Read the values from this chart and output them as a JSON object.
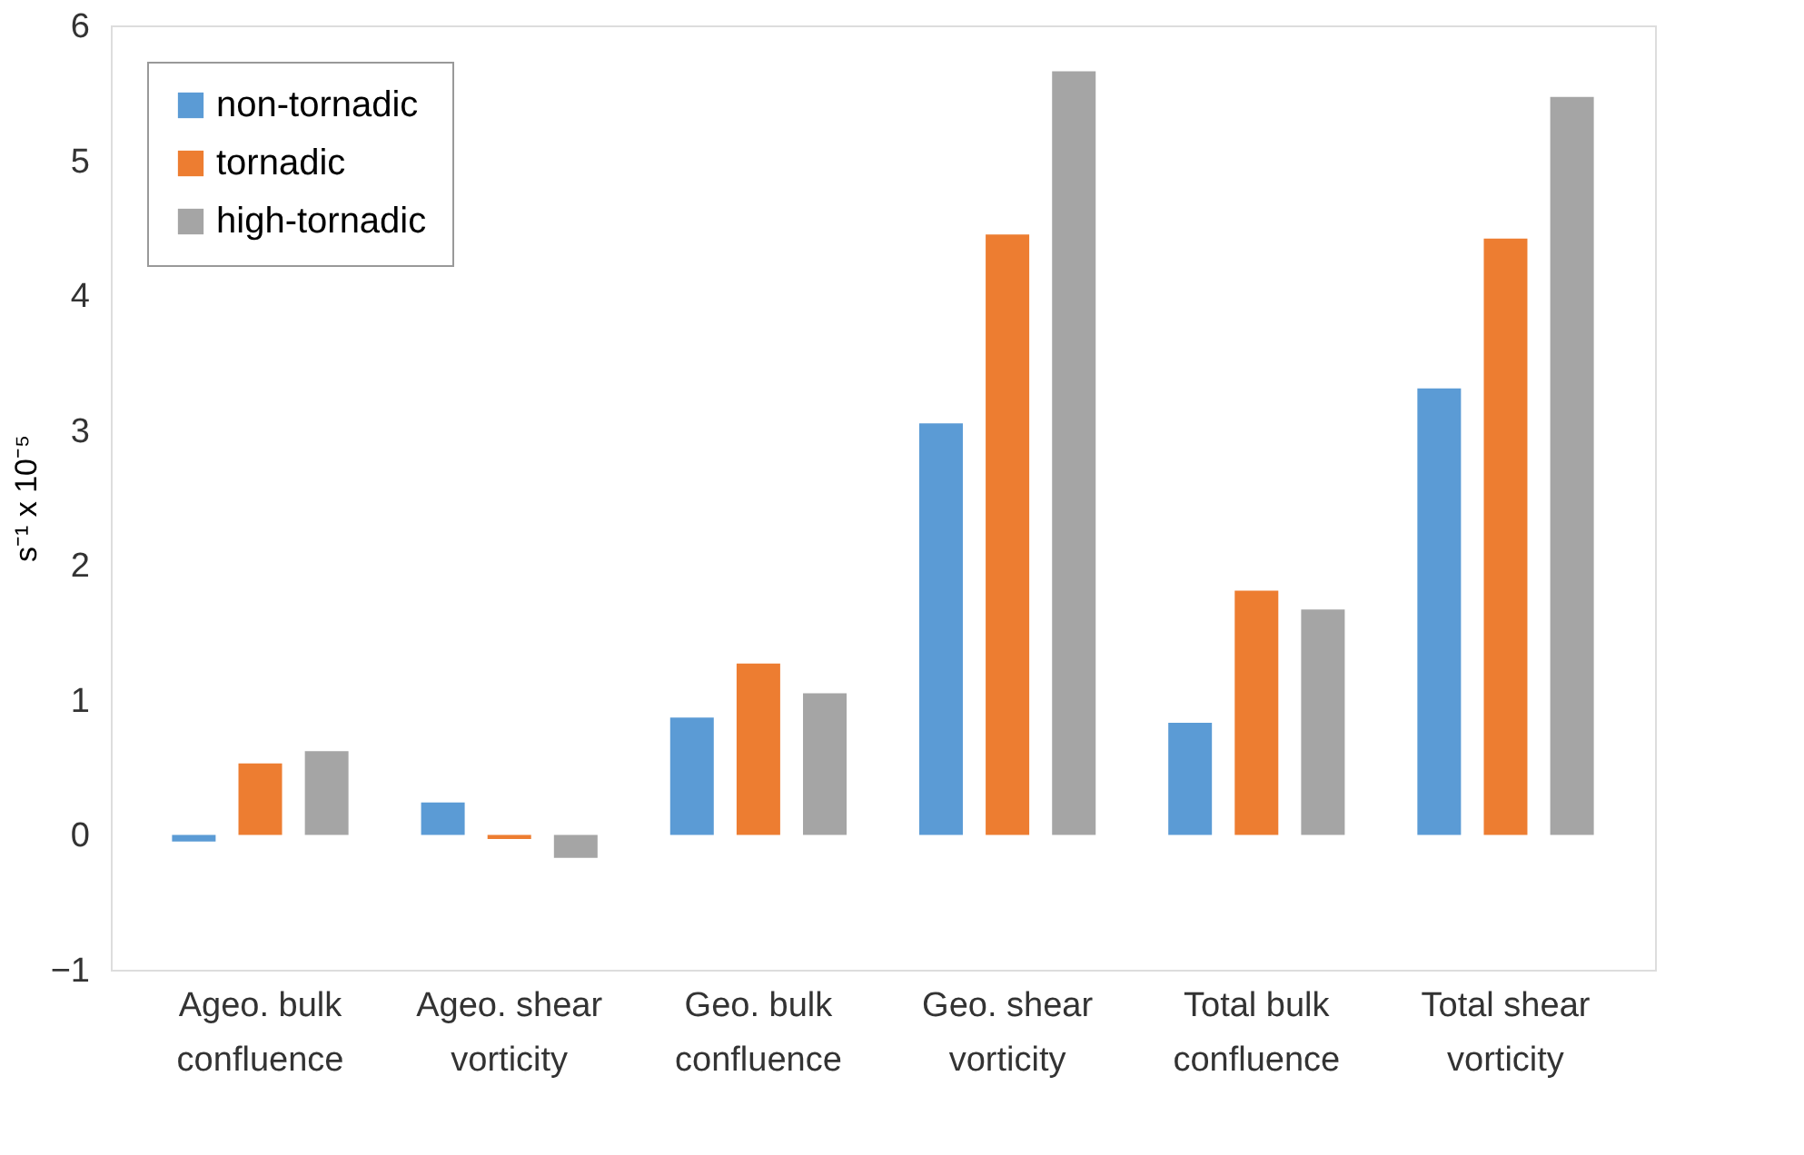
{
  "chart_data": {
    "type": "bar",
    "ylabel": "s⁻¹ x 10⁻⁵",
    "categories": [
      "Ageo. bulk confluence",
      "Ageo. shear vorticity",
      "Geo. bulk confluence",
      "Geo. shear vorticity",
      "Total bulk confluence",
      "Total shear vorticity"
    ],
    "series": [
      {
        "name": "non-tornadic",
        "color": "#5b9bd5",
        "values": [
          -0.05,
          0.24,
          0.87,
          3.05,
          0.83,
          3.31
        ]
      },
      {
        "name": "tornadic",
        "color": "#ed7d31",
        "values": [
          0.53,
          -0.03,
          1.27,
          4.45,
          1.81,
          4.42
        ]
      },
      {
        "name": "high-tornadic",
        "color": "#a5a5a5",
        "values": [
          0.62,
          -0.17,
          1.05,
          5.66,
          1.67,
          5.47
        ]
      }
    ],
    "ylim": [
      -1,
      6
    ],
    "yticks": [
      -1,
      0,
      1,
      2,
      3,
      4,
      5,
      6
    ],
    "grid": false,
    "legend": "top left"
  }
}
